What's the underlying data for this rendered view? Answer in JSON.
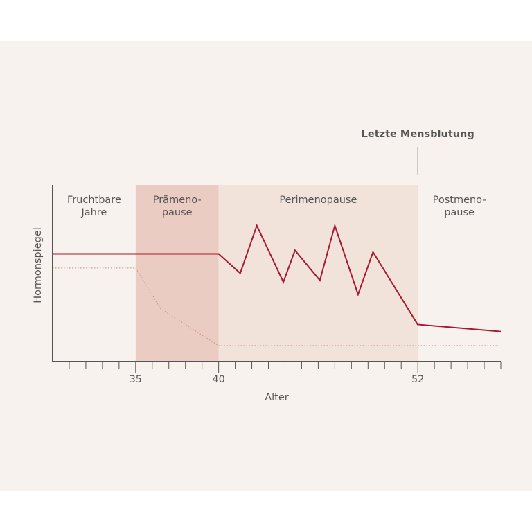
{
  "colors": {
    "background": "#f8f2ee",
    "premenopause_band": "#ebccc2",
    "perimenopause_band": "#f1e2da",
    "solid_line": "#a8192e",
    "dotted_line": "#d49a80",
    "axis": "#555555",
    "text": "#555555"
  },
  "chart_data": {
    "type": "line",
    "xlabel": "Alter",
    "ylabel": "Hormonspiegel",
    "xlim": [
      30,
      57
    ],
    "ylim": [
      0,
      100
    ],
    "x_ticks_labeled": [
      {
        "value": 35,
        "label": "35"
      },
      {
        "value": 40,
        "label": "40"
      },
      {
        "value": 52,
        "label": "52"
      }
    ],
    "x_minor_tick_step": 1,
    "phases": [
      {
        "id": "fruchtbar",
        "lines": [
          "Fruchtbare",
          "Jahre"
        ],
        "x0": 30,
        "x1": 35,
        "shade": "none"
      },
      {
        "id": "praemeno",
        "lines": [
          "Prämeno-",
          "pause"
        ],
        "x0": 35,
        "x1": 40,
        "shade": "premenopause_band"
      },
      {
        "id": "perimeno",
        "lines": [
          "Perimenopause"
        ],
        "x0": 40,
        "x1": 52,
        "shade": "perimenopause_band"
      },
      {
        "id": "postmeno",
        "lines": [
          "Postmeno-",
          "pause"
        ],
        "x0": 52,
        "x1": 57,
        "shade": "none"
      }
    ],
    "marker": {
      "x": 52,
      "label": "Letzte Mensblutung"
    },
    "series": [
      {
        "style": "solid",
        "x": [
          30,
          40,
          41.3,
          42.3,
          43.9,
          44.6,
          46.1,
          47.0,
          48.4,
          49.3,
          51.99,
          57
        ],
        "y": [
          61,
          61,
          50,
          77,
          45,
          63,
          46,
          77,
          38,
          62,
          21,
          17
        ]
      },
      {
        "style": "dotted",
        "x": [
          30,
          35,
          36.5,
          40,
          57
        ],
        "y": [
          53,
          53,
          30,
          9,
          9
        ]
      }
    ]
  }
}
